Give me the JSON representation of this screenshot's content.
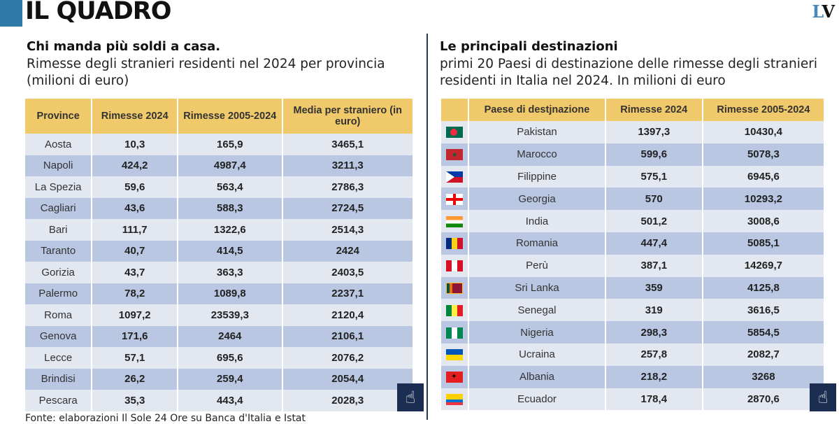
{
  "header": {
    "title": "IL QUADRO",
    "logo": "LV"
  },
  "left": {
    "heading": "Chi manda più soldi a casa.",
    "subtitle": "Rimesse degli stranieri residenti nel 2024 per provincia (milioni di euro)",
    "columns": [
      "Province",
      "Rimesse 2024",
      "Rimesse 2005-2024",
      "Media per straniero (in euro)"
    ],
    "rows": [
      [
        "Aosta",
        "10,3",
        "165,9",
        "3465,1"
      ],
      [
        "Napoli",
        "424,2",
        "4987,4",
        "3211,3"
      ],
      [
        "La Spezia",
        "59,6",
        "563,4",
        "2786,3"
      ],
      [
        "Cagliari",
        "43,6",
        "588,3",
        "2724,5"
      ],
      [
        "Bari",
        "111,7",
        "1322,6",
        "2514,3"
      ],
      [
        "Taranto",
        "40,7",
        "414,5",
        "2424"
      ],
      [
        "Gorizia",
        "43,7",
        "363,3",
        "2403,5"
      ],
      [
        "Palermo",
        "78,2",
        "1089,8",
        "2237,1"
      ],
      [
        "Roma",
        "1097,2",
        "23539,3",
        "2120,4"
      ],
      [
        "Genova",
        "171,6",
        "2464",
        "2106,1"
      ],
      [
        "Lecce",
        "57,1",
        "695,6",
        "2076,2"
      ],
      [
        "Brindisi",
        "26,2",
        "259,4",
        "2054,4"
      ],
      [
        "Pescara",
        "35,3",
        "443,4",
        "2028,3"
      ]
    ],
    "source": "Fonte: elaborazioni Il Sole 24 Ore su Banca d'Italia e Istat"
  },
  "right": {
    "heading": "Le principali destinazioni",
    "subtitle": "primi 20 Paesi di destinazione delle rimesse degli stranieri residenti in Italia nel 2024. In milioni di euro",
    "columns": [
      "",
      "Paese di destjnazione",
      "Rimesse 2024",
      "Rimesse 2005-2024"
    ],
    "rows": [
      [
        "bangladesh-flag",
        "Pakistan",
        "1397,3",
        "10430,4"
      ],
      [
        "morocco-flag",
        "Marocco",
        "599,6",
        "5078,3"
      ],
      [
        "philippines-flag",
        "Filippine",
        "575,1",
        "6945,6"
      ],
      [
        "georgia-flag",
        "Georgia",
        "570",
        "10293,2"
      ],
      [
        "india-flag",
        "India",
        "501,2",
        "3008,6"
      ],
      [
        "romania-flag",
        "Romania",
        "447,4",
        "5085,1"
      ],
      [
        "peru-flag",
        "Perù",
        "387,1",
        "14269,7"
      ],
      [
        "sri-lanka-flag",
        "Sri Lanka",
        "359",
        "4125,8"
      ],
      [
        "senegal-flag",
        "Senegal",
        "319",
        "3616,5"
      ],
      [
        "nigeria-flag",
        "Nigeria",
        "298,3",
        "5854,5"
      ],
      [
        "ukraine-flag",
        "Ucraina",
        "257,8",
        "2082,7"
      ],
      [
        "albania-flag",
        "Albania",
        "218,2",
        "3268"
      ],
      [
        "ecuador-flag",
        "Ecuador",
        "178,4",
        "2870,6"
      ]
    ]
  },
  "scroll_icon": "hand-pointer-icon"
}
